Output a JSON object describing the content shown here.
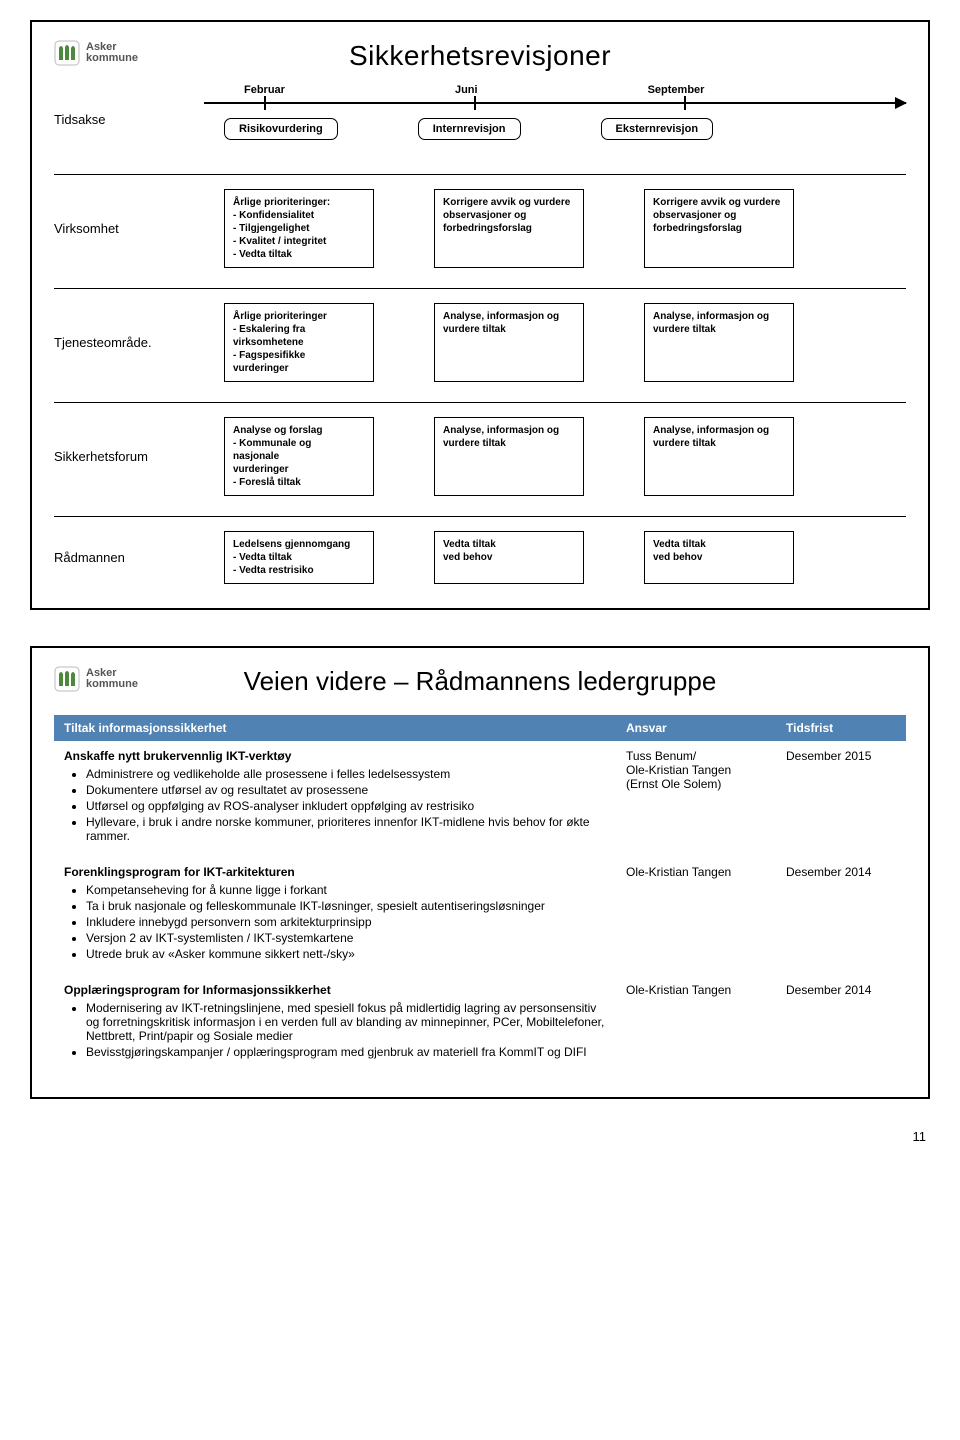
{
  "logo": {
    "line1": "Asker",
    "line2": "kommune"
  },
  "page_number": "11",
  "slide1": {
    "title": "Sikkerhetsrevisjoner",
    "tidsakse_label": "Tidsakse",
    "months": [
      "Februar",
      "Juni",
      "September"
    ],
    "timeline_boxes": [
      "Risikovurdering",
      "Internrevisjon",
      "Eksternrevisjon"
    ],
    "rows": [
      {
        "label": "Virksomhet",
        "boxes": [
          "Årlige prioriteringer:\n- Konfidensialitet\n- Tilgjengelighet\n- Kvalitet / integritet\n- Vedta tiltak",
          "Korrigere avvik og vurdere observasjoner og forbedringsforslag",
          "Korrigere avvik og vurdere observasjoner og forbedringsforslag"
        ]
      },
      {
        "label": "Tjenesteområde.",
        "boxes": [
          "Årlige prioriteringer\n- Eskalering fra\n  virksomhetene\n- Fagspesifikke\n  vurderinger",
          "Analyse, informasjon og vurdere tiltak",
          "Analyse, informasjon og vurdere tiltak"
        ]
      },
      {
        "label": "Sikkerhetsforum",
        "boxes": [
          "Analyse og forslag\n- Kommunale og\n  nasjonale\n  vurderinger\n- Foreslå tiltak",
          "Analyse, informasjon og vurdere tiltak",
          "Analyse, informasjon og vurdere tiltak"
        ]
      },
      {
        "label": "Rådmannen",
        "boxes": [
          "Ledelsens gjennomgang\n- Vedta tiltak\n- Vedta restrisiko",
          "Vedta tiltak\nved behov",
          "Vedta tiltak\nved behov"
        ]
      }
    ]
  },
  "slide2": {
    "title": "Veien videre – Rådmannens ledergruppe",
    "headers": {
      "tiltak": "Tiltak informasjonssikkerhet",
      "ansvar": "Ansvar",
      "frist": "Tidsfrist"
    },
    "rows": [
      {
        "title": "Anskaffe nytt brukervennlig IKT-verktøy",
        "bullets": [
          "Administrere og vedlikeholde alle prosessene i felles ledelsessystem",
          "Dokumentere utførsel av og resultatet av prosessene",
          "Utførsel og oppfølging av ROS-analyser inkludert oppfølging av restrisiko",
          "Hyllevare, i bruk i andre norske kommuner, prioriteres innenfor IKT-midlene hvis behov for økte rammer."
        ],
        "ansvar": "Tuss Benum/\nOle-Kristian Tangen\n(Ernst Ole Solem)",
        "frist": "Desember 2015"
      },
      {
        "title": "Forenklingsprogram for IKT-arkitekturen",
        "bullets": [
          "Kompetanseheving for å kunne ligge i forkant",
          "Ta i bruk nasjonale og felleskommunale IKT-løsninger, spesielt autentiseringsløsninger",
          "Inkludere innebygd personvern som arkitekturprinsipp",
          "Versjon 2 av IKT-systemlisten / IKT-systemkartene",
          "Utrede bruk av «Asker kommune sikkert nett-/sky»"
        ],
        "ansvar": "Ole-Kristian Tangen",
        "frist": "Desember 2014"
      },
      {
        "title": "Opplæringsprogram for Informasjonssikkerhet",
        "bullets": [
          "Modernisering av IKT-retningslinjene, med spesiell fokus på midlertidig lagring av personsensitiv og forretningskritisk informasjon i en verden full av blanding av minnepinner, PCer, Mobiltelefoner, Nettbrett, Print/papir og Sosiale medier",
          "Bevisstgjøringskampanjer / opplæringsprogram med gjenbruk av materiell fra KommIT og DIFI"
        ],
        "ansvar": "Ole-Kristian Tangen",
        "frist": "Desember 2014"
      }
    ]
  },
  "colors": {
    "header_bg": "#5082b4",
    "header_text": "#ffffff",
    "border": "#000000",
    "logo_green": "#4a8a3a",
    "logo_gray": "#777777"
  }
}
